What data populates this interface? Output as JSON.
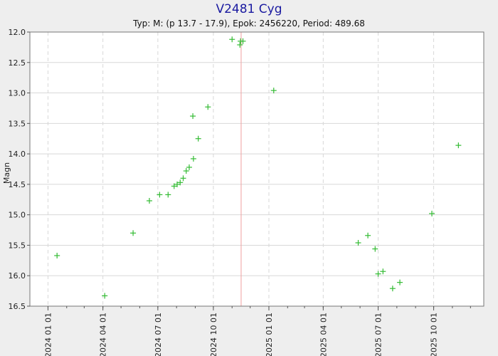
{
  "chart_data": {
    "type": "scatter",
    "title": "V2481 Cyg",
    "subtitle": "Typ: M: (p 13.7 - 17.9), Epok: 2456220, Period: 489.68",
    "ylabel": "Magn",
    "xlabel": "",
    "y_inverted": true,
    "ylim": [
      12.0,
      16.5
    ],
    "yticks": [
      12.0,
      12.5,
      13.0,
      13.5,
      14.0,
      14.5,
      15.0,
      15.5,
      16.0,
      16.5
    ],
    "ytick_labels": [
      "12.0",
      "12.5",
      "13.0",
      "13.5",
      "14.0",
      "14.5",
      "15.0",
      "15.5",
      "16.0",
      "16.5"
    ],
    "xlim": [
      "2023-12-02",
      "2025-12-23"
    ],
    "xticks": [
      "2024-01-01",
      "2024-04-01",
      "2024-07-01",
      "2024-10-01",
      "2025-01-01",
      "2025-04-01",
      "2025-07-01",
      "2025-10-01"
    ],
    "xtick_labels": [
      "2024 01 01",
      "2024 04 01",
      "2024 07 01",
      "2024 10 01",
      "2025 01 01",
      "2025 04 01",
      "2025 07 01",
      "2025 10 01"
    ],
    "grid": true,
    "marker": "+",
    "colors": {
      "points": "#33bb33",
      "maximum_line": "#f0a0a0",
      "title": "#1a1aa0",
      "plot_background": "#ffffff",
      "page_background": "#eeeeee"
    },
    "maximum_date": "2024-11-16",
    "points": [
      {
        "x": "2024-01-16",
        "y": 15.67
      },
      {
        "x": "2024-04-04",
        "y": 16.33
      },
      {
        "x": "2024-05-21",
        "y": 15.3
      },
      {
        "x": "2024-06-17",
        "y": 14.77
      },
      {
        "x": "2024-07-04",
        "y": 14.67
      },
      {
        "x": "2024-07-18",
        "y": 14.67
      },
      {
        "x": "2024-07-28",
        "y": 14.53
      },
      {
        "x": "2024-08-02",
        "y": 14.5
      },
      {
        "x": "2024-08-07",
        "y": 14.47
      },
      {
        "x": "2024-08-12",
        "y": 14.4
      },
      {
        "x": "2024-08-17",
        "y": 14.28
      },
      {
        "x": "2024-08-22",
        "y": 14.22
      },
      {
        "x": "2024-08-29",
        "y": 14.08
      },
      {
        "x": "2024-08-28",
        "y": 13.38
      },
      {
        "x": "2024-09-06",
        "y": 13.75
      },
      {
        "x": "2024-09-22",
        "y": 13.23
      },
      {
        "x": "2024-11-01",
        "y": 12.12
      },
      {
        "x": "2024-11-14",
        "y": 12.21
      },
      {
        "x": "2024-11-15",
        "y": 12.15
      },
      {
        "x": "2024-11-19",
        "y": 12.15
      },
      {
        "x": "2025-01-09",
        "y": 12.96
      },
      {
        "x": "2025-05-29",
        "y": 15.46
      },
      {
        "x": "2025-06-14",
        "y": 15.34
      },
      {
        "x": "2025-06-26",
        "y": 15.56
      },
      {
        "x": "2025-07-01",
        "y": 15.97
      },
      {
        "x": "2025-07-09",
        "y": 15.93
      },
      {
        "x": "2025-07-25",
        "y": 16.21
      },
      {
        "x": "2025-08-06",
        "y": 16.11
      },
      {
        "x": "2025-09-28",
        "y": 14.98
      },
      {
        "x": "2025-11-11",
        "y": 13.86
      }
    ]
  }
}
